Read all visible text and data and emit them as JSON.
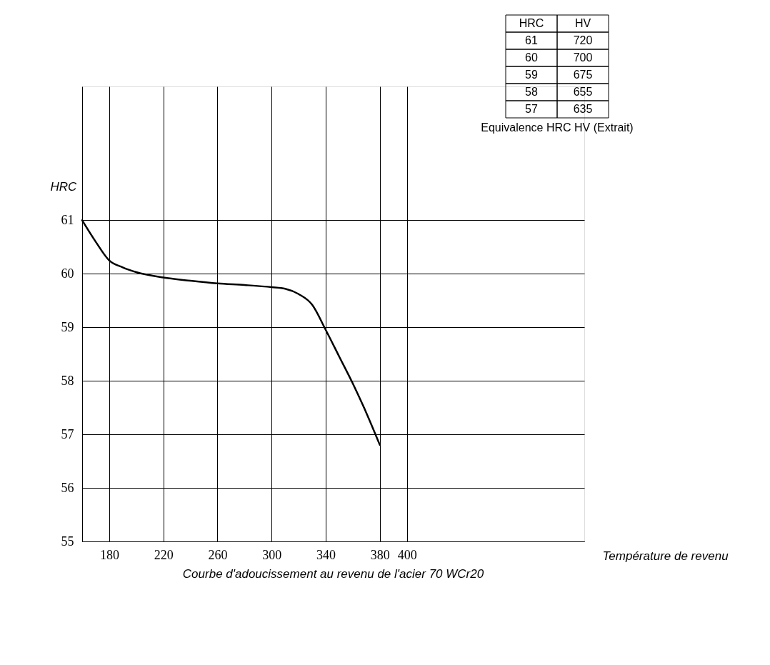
{
  "chart_data": {
    "type": "line",
    "title": "Courbe d'adoucissement au revenu de l'acier 70 WCr20",
    "xlabel": "Température de revenu",
    "ylabel": "HRC",
    "x": [
      160,
      170,
      180,
      190,
      200,
      220,
      240,
      260,
      280,
      300,
      310,
      320,
      330,
      340,
      350,
      360,
      370,
      380
    ],
    "series": [
      {
        "color": "#000000",
        "values": [
          61.0,
          60.6,
          60.25,
          60.12,
          60.03,
          59.93,
          59.87,
          59.82,
          59.79,
          59.75,
          59.72,
          59.62,
          59.42,
          58.95,
          58.45,
          57.95,
          57.4,
          56.8
        ]
      }
    ],
    "xlim": [
      160,
      531
    ],
    "xticks": [
      180,
      220,
      260,
      300,
      340,
      380,
      400
    ],
    "ylim": [
      55,
      63.5
    ],
    "yticks": [
      55,
      56,
      57,
      58,
      59,
      60,
      61
    ],
    "grid": true,
    "marker": "none",
    "line_style": "solid",
    "annotations": [
      "HRC",
      "HV",
      "61",
      "720",
      "60",
      "700",
      "59",
      "675",
      "58",
      "655",
      "57",
      "635",
      "Equivalence HRC HV (Extrait)"
    ]
  }
}
